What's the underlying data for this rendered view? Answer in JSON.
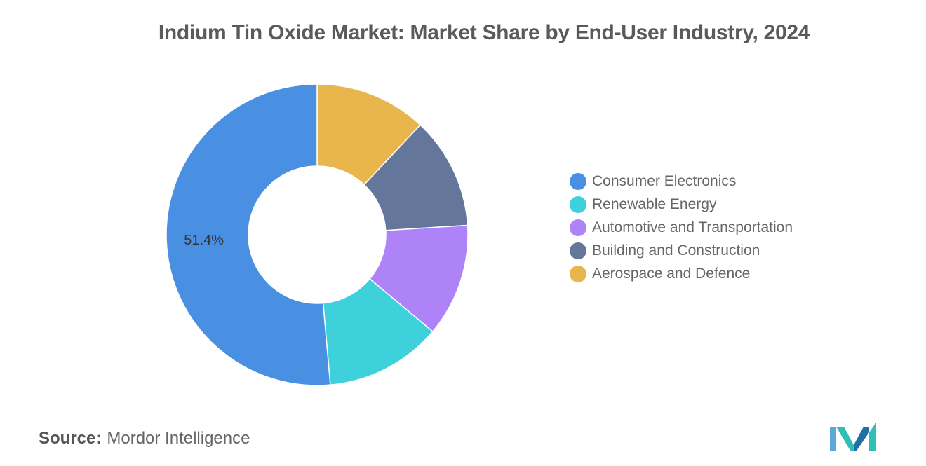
{
  "title": "Indium Tin Oxide Market: Market Share by End-User Industry, 2024",
  "chart_data": {
    "type": "pie",
    "variant": "donut",
    "title": "Indium Tin Oxide Market: Market Share by End-User Industry, 2024",
    "categories": [
      "Consumer Electronics",
      "Renewable Energy",
      "Automotive and Transportation",
      "Building and Construction",
      "Aerospace and Defence"
    ],
    "values": [
      51.4,
      12.5,
      12.1,
      12.0,
      12.0
    ],
    "colors": [
      "#4a90e2",
      "#3fd1db",
      "#ae83f8",
      "#64779a",
      "#e8b64c"
    ],
    "data_labels": [
      "51.4%",
      "",
      "",
      "",
      ""
    ],
    "legend_position": "right"
  },
  "legend": {
    "items": [
      {
        "label": "Consumer Electronics",
        "color": "#4a90e2"
      },
      {
        "label": "Renewable Energy",
        "color": "#3fd1db"
      },
      {
        "label": "Automotive and Transportation",
        "color": "#ae83f8"
      },
      {
        "label": "Building and Construction",
        "color": "#64779a"
      },
      {
        "label": "Aerospace and Defence",
        "color": "#e8b64c"
      }
    ]
  },
  "source": {
    "label": "Source:",
    "text": "Mordor Intelligence"
  },
  "logo": {
    "icon": "mordor-intelligence-logo-icon",
    "colors": [
      "#5aa9d6",
      "#2fbfb6",
      "#1f6fa8"
    ]
  }
}
